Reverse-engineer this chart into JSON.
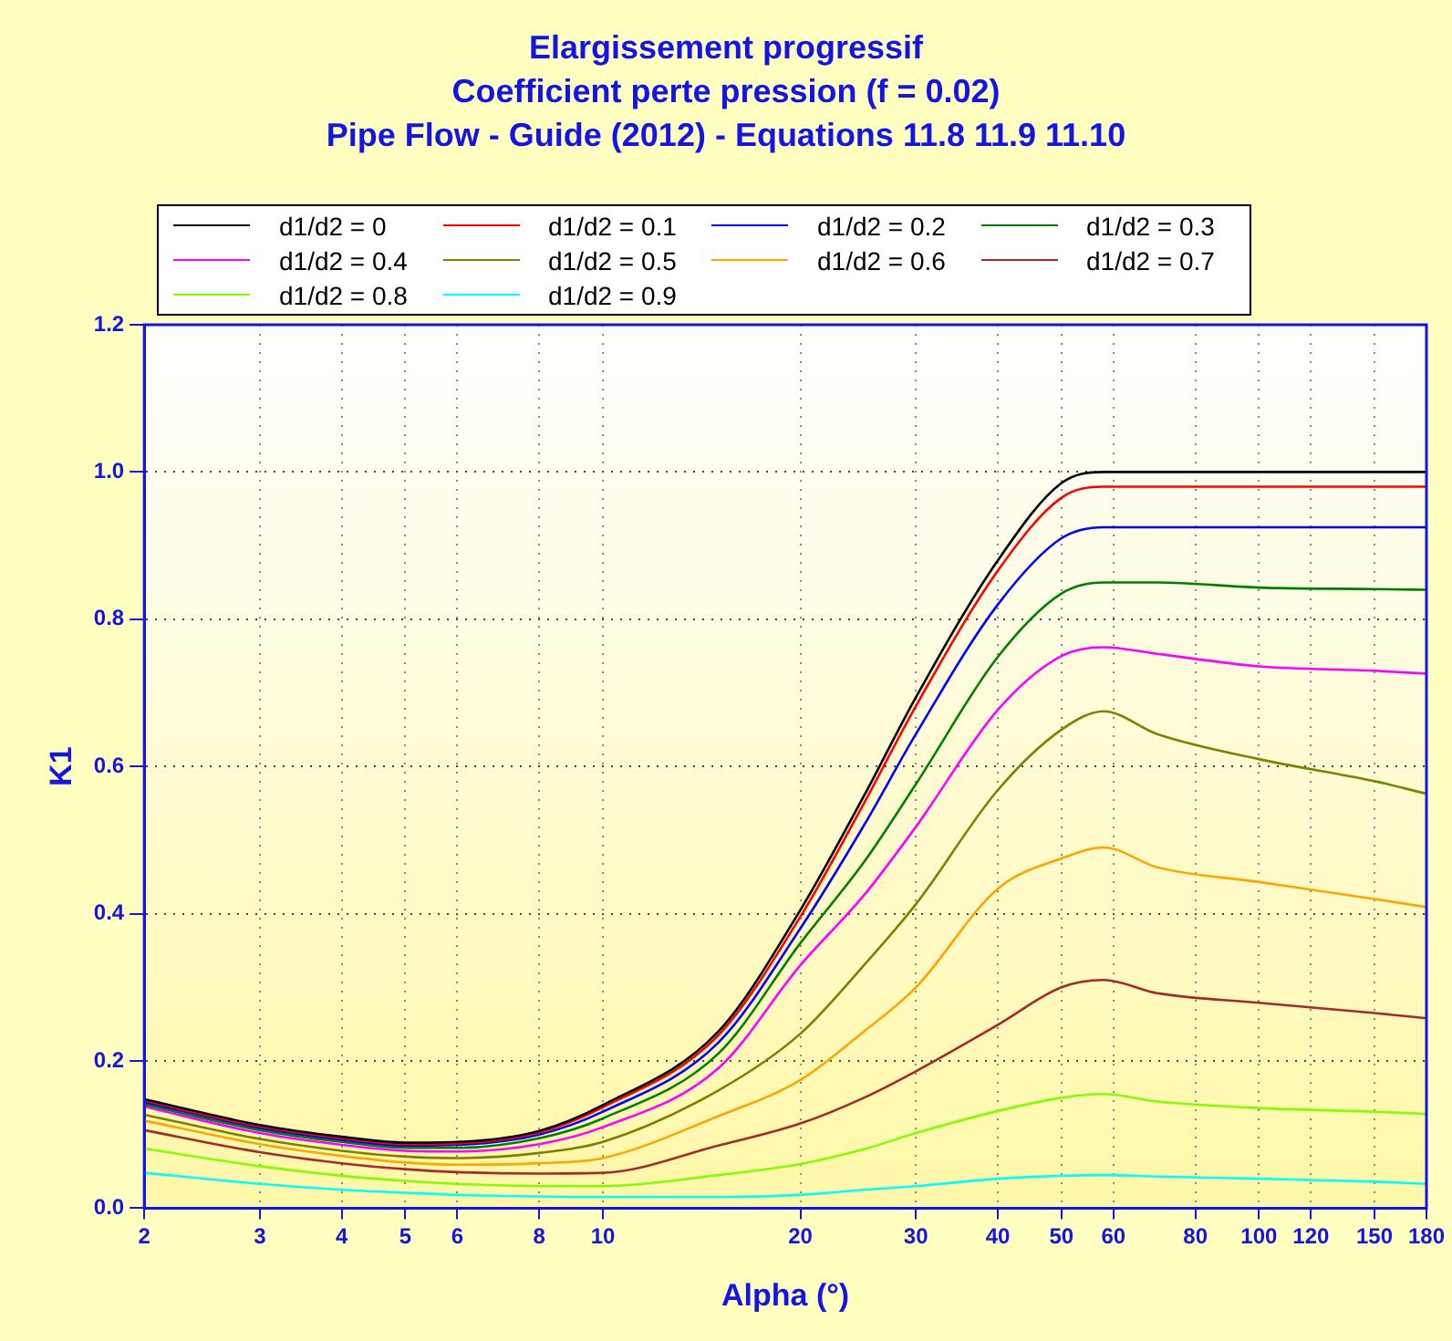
{
  "chart_data": {
    "type": "line",
    "title": "Elargissement progressif",
    "subtitle": "Coefficient perte pression (f = 0.02)\nPipe Flow - Guide (2012) - Equations 11.8 11.9 11.10",
    "xlabel": "Alpha (°)",
    "ylabel": "K1",
    "x": [
      2,
      3,
      4,
      5,
      6,
      8,
      10,
      15,
      20,
      25,
      30,
      40,
      50,
      58,
      70,
      100,
      150,
      180
    ],
    "series": [
      {
        "name": "d1/d2 = 0",
        "color": "#000000",
        "values": [
          0.148,
          0.113,
          0.097,
          0.089,
          0.09,
          0.105,
          0.14,
          0.24,
          0.405,
          0.56,
          0.694,
          0.88,
          0.985,
          1,
          1,
          1,
          1,
          1
        ]
      },
      {
        "name": "d1/d2 = 0.1",
        "color": "#ff0000",
        "values": [
          0.146,
          0.111,
          0.095,
          0.087,
          0.088,
          0.103,
          0.137,
          0.235,
          0.396,
          0.55,
          0.682,
          0.866,
          0.965,
          0.98,
          0.98,
          0.98,
          0.98,
          0.98
        ]
      },
      {
        "name": "d1/d2 = 0.2",
        "color": "#0000ff",
        "values": [
          0.144,
          0.109,
          0.093,
          0.085,
          0.086,
          0.1,
          0.131,
          0.225,
          0.38,
          0.52,
          0.644,
          0.82,
          0.91,
          0.925,
          0.925,
          0.925,
          0.925,
          0.925
        ]
      },
      {
        "name": "d1/d2 = 0.3",
        "color": "#008000",
        "values": [
          0.141,
          0.106,
          0.09,
          0.082,
          0.082,
          0.095,
          0.122,
          0.21,
          0.36,
          0.47,
          0.576,
          0.749,
          0.835,
          0.85,
          0.85,
          0.843,
          0.841,
          0.84
        ]
      },
      {
        "name": "d1/d2 = 0.4",
        "color": "#ff00ff",
        "values": [
          0.138,
          0.102,
          0.086,
          0.078,
          0.077,
          0.087,
          0.11,
          0.19,
          0.33,
          0.425,
          0.518,
          0.677,
          0.75,
          0.762,
          0.753,
          0.736,
          0.73,
          0.726
        ]
      },
      {
        "name": "d1/d2 = 0.5",
        "color": "#808000",
        "values": [
          0.127,
          0.094,
          0.078,
          0.07,
          0.068,
          0.075,
          0.09,
          0.16,
          0.237,
          0.33,
          0.413,
          0.568,
          0.65,
          0.675,
          0.644,
          0.61,
          0.58,
          0.563
        ]
      },
      {
        "name": "d1/d2 = 0.6",
        "color": "#ffa500",
        "values": [
          0.119,
          0.087,
          0.071,
          0.062,
          0.059,
          0.061,
          0.068,
          0.125,
          0.174,
          0.24,
          0.3,
          0.434,
          0.475,
          0.49,
          0.463,
          0.443,
          0.42,
          0.409
        ]
      },
      {
        "name": "d1/d2 = 0.7",
        "color": "#a52a2a",
        "values": [
          0.106,
          0.076,
          0.061,
          0.053,
          0.049,
          0.047,
          0.048,
          0.085,
          0.115,
          0.15,
          0.186,
          0.249,
          0.3,
          0.31,
          0.292,
          0.279,
          0.265,
          0.258
        ]
      },
      {
        "name": "d1/d2 = 0.8",
        "color": "#80ff00",
        "values": [
          0.081,
          0.057,
          0.044,
          0.037,
          0.033,
          0.03,
          0.03,
          0.045,
          0.06,
          0.08,
          0.102,
          0.132,
          0.15,
          0.155,
          0.145,
          0.136,
          0.131,
          0.128
        ]
      },
      {
        "name": "d1/d2 = 0.9",
        "color": "#00ffff",
        "values": [
          0.048,
          0.033,
          0.025,
          0.021,
          0.018,
          0.016,
          0.015,
          0.015,
          0.018,
          0.025,
          0.03,
          0.04,
          0.044,
          0.045,
          0.043,
          0.04,
          0.036,
          0.033
        ]
      }
    ],
    "log": "x",
    "xlim": [
      2,
      180
    ],
    "xticks": [
      2,
      3,
      4,
      5,
      6,
      8,
      10,
      20,
      30,
      40,
      50,
      60,
      80,
      100,
      120,
      150,
      180
    ],
    "ylim": [
      0,
      1.2
    ],
    "yticks": [
      {
        "value": 0,
        "label": "0.0"
      },
      {
        "value": 0.2,
        "label": "0.2"
      },
      {
        "value": 0.4,
        "label": "0.4"
      },
      {
        "value": 0.6,
        "label": "0.6"
      },
      {
        "value": 0.8,
        "label": "0.8"
      },
      {
        "value": 1,
        "label": "1.0"
      },
      {
        "value": 1.2,
        "label": "1.2"
      }
    ],
    "grid": true,
    "legend": "top",
    "marker": "none",
    "line_style": "solid"
  }
}
